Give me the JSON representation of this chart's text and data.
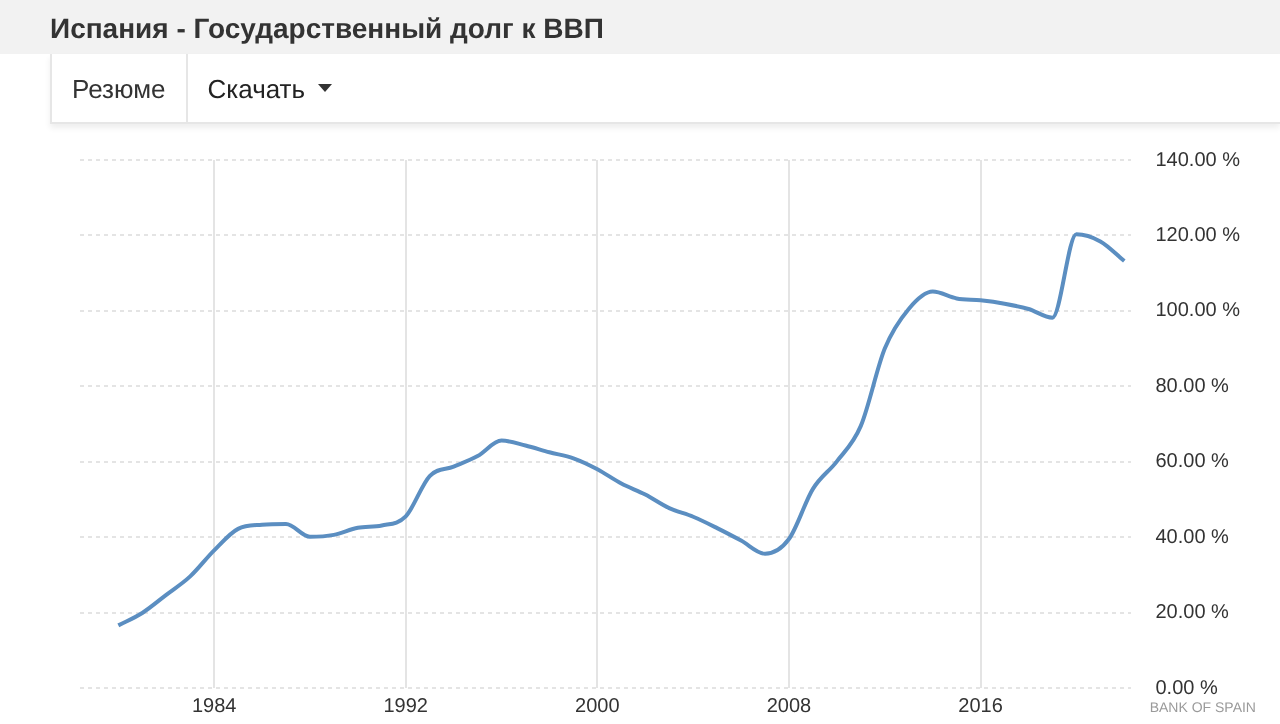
{
  "chart_data": {
    "type": "line",
    "title": "Испания - Государственный долг к ВВП",
    "annotations": [
      "Резюме",
      "Скачать",
      "BANK OF SPAIN"
    ],
    "x": [
      1980,
      1981,
      1982,
      1983,
      1984,
      1985,
      1986,
      1987,
      1988,
      1989,
      1990,
      1991,
      1992,
      1993,
      1994,
      1995,
      1996,
      1997,
      1998,
      1999,
      2000,
      2001,
      2002,
      2003,
      2004,
      2005,
      2006,
      2007,
      2008,
      2009,
      2010,
      2011,
      2012,
      2013,
      2014,
      2015,
      2016,
      2017,
      2018,
      2019,
      2020,
      2021,
      2022
    ],
    "series": [
      {
        "color": "#5b8ec1",
        "values": [
          16.6,
          19.9,
          24.7,
          29.6,
          36.5,
          42.2,
          43.3,
          43.5,
          40.1,
          40.6,
          42.5,
          43.1,
          45.5,
          56.2,
          58.7,
          61.5,
          65.6,
          64.3,
          62.5,
          60.9,
          58.0,
          54.2,
          51.3,
          47.7,
          45.4,
          42.4,
          39.1,
          35.6,
          39.5,
          52.8,
          60.1,
          69.5,
          90.0,
          100.5,
          105.1,
          103.3,
          102.8,
          101.9,
          100.5,
          98.2,
          120.3,
          118.4,
          113.2
        ]
      }
    ],
    "xlim": [
      1978.4,
      2022.3
    ],
    "xticks": [
      1984,
      1992,
      2000,
      2008,
      2016
    ],
    "ylim": [
      0,
      140
    ],
    "yticks": [
      {
        "value": 0,
        "label": "0.00 %"
      },
      {
        "value": 20,
        "label": "20.00 %"
      },
      {
        "value": 40,
        "label": "40.00 %"
      },
      {
        "value": 60,
        "label": "60.00 %"
      },
      {
        "value": 80,
        "label": "80.00 %"
      },
      {
        "value": 100,
        "label": "100.00 %"
      },
      {
        "value": 120,
        "label": "120.00 %"
      },
      {
        "value": 140,
        "label": "140.00 %"
      }
    ],
    "grid": true,
    "legend": false,
    "marker": "none",
    "line_style": "solid"
  }
}
